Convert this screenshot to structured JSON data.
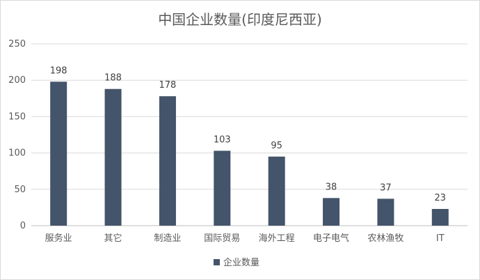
{
  "chart_data": {
    "type": "bar",
    "title": "中国企业数量(印度尼西亚)",
    "categories": [
      "服务业",
      "其它",
      "制造业",
      "国际贸易",
      "海外工程",
      "电子电气",
      "农林渔牧",
      "IT"
    ],
    "series": [
      {
        "name": "企业数量",
        "values": [
          198,
          188,
          178,
          103,
          95,
          38,
          37,
          23
        ],
        "color": "#44546a"
      }
    ],
    "ylim": [
      0,
      250
    ],
    "yticks": [
      0,
      50,
      100,
      150,
      200,
      250
    ],
    "grid": true,
    "data_labels": true,
    "legend": "bottom"
  }
}
